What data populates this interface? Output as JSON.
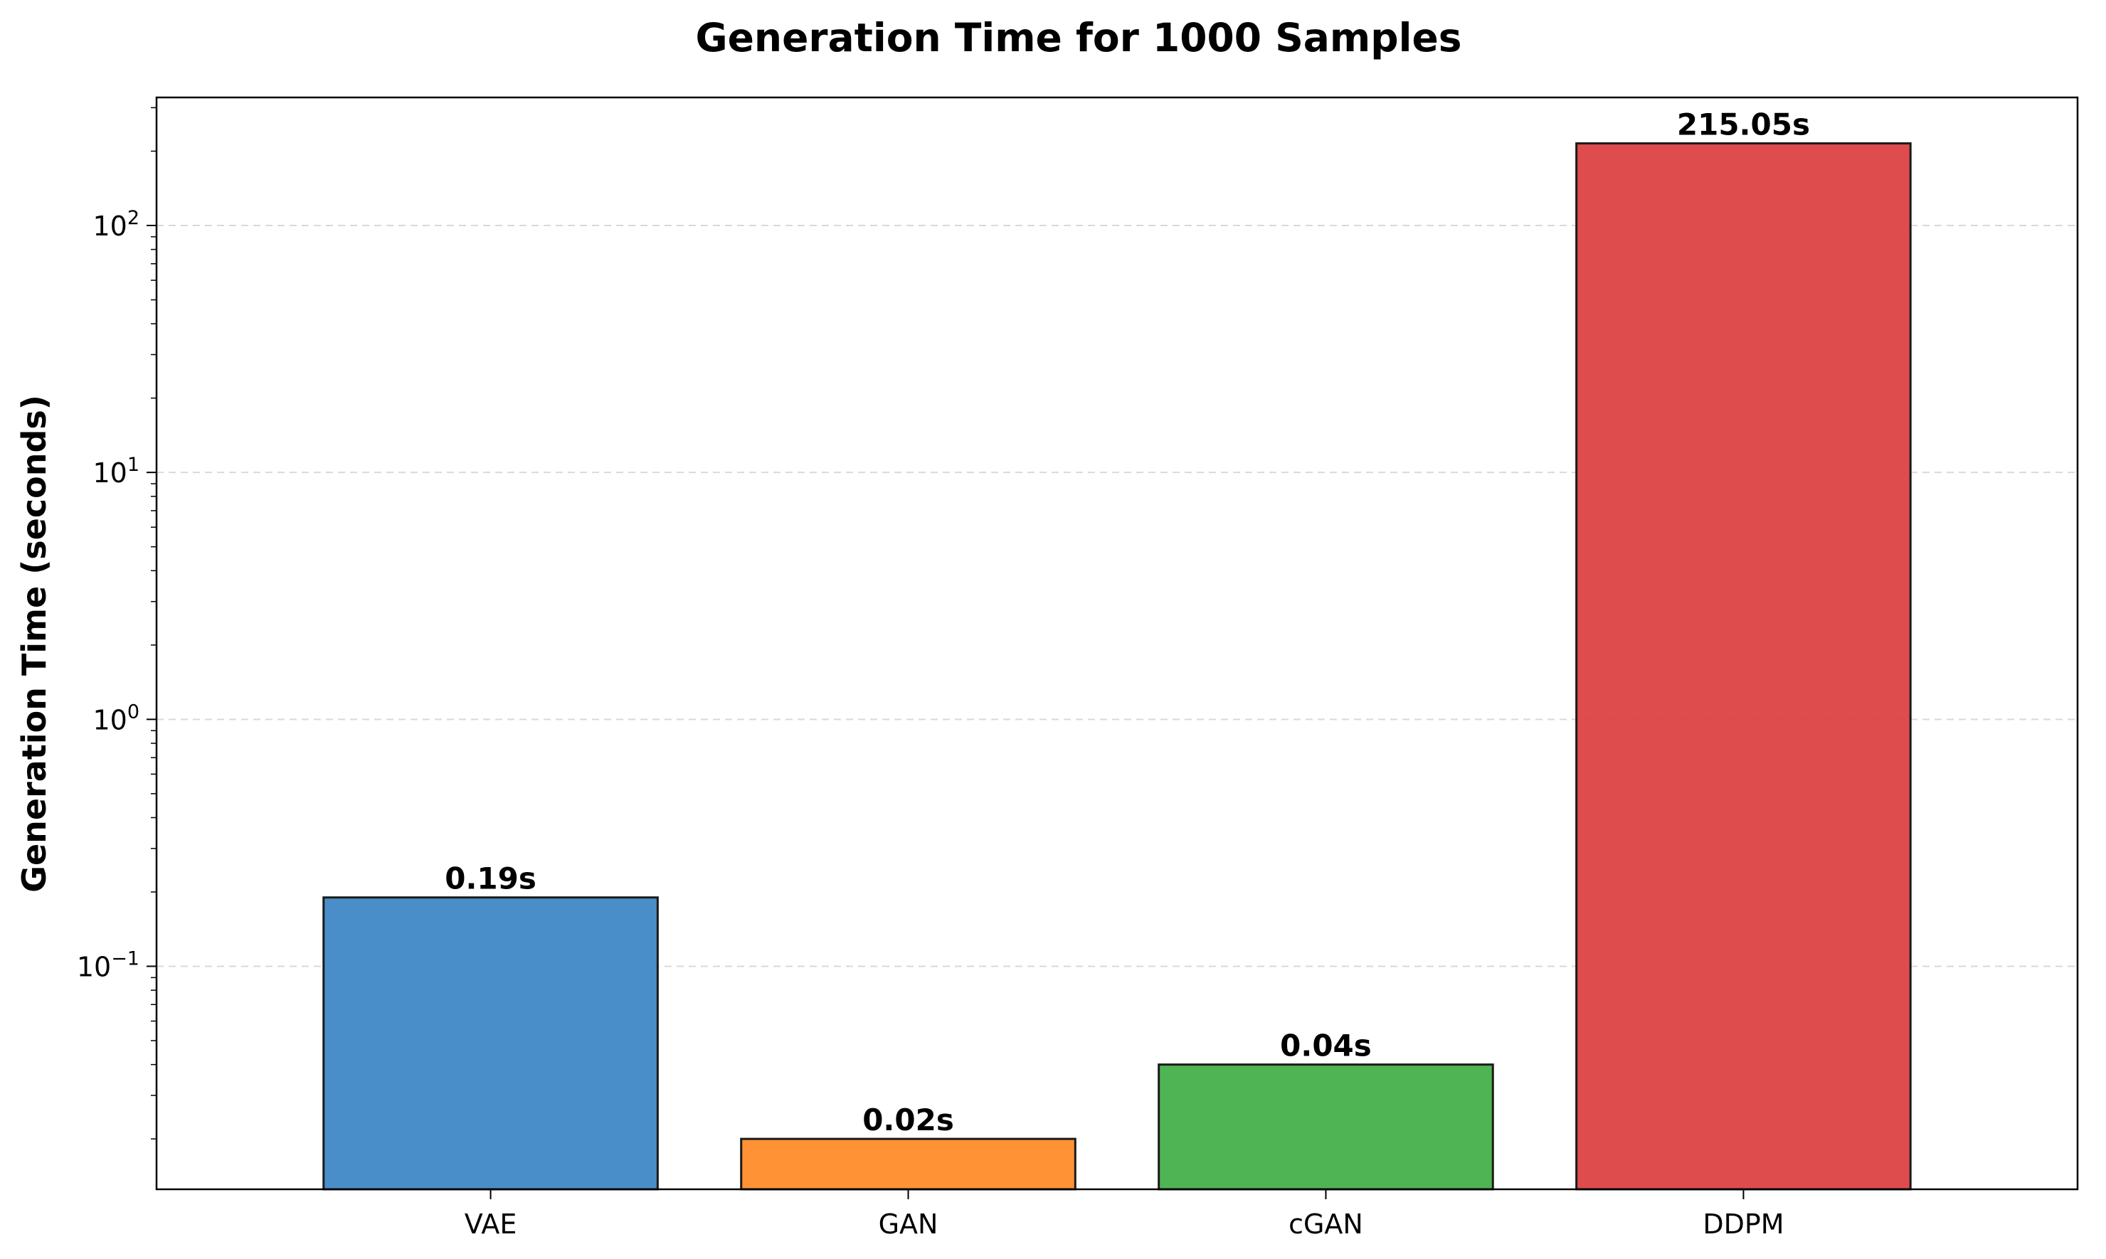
{
  "chart_data": {
    "type": "bar",
    "title": "Generation Time for 1000 Samples",
    "xlabel": "",
    "ylabel": "Generation Time (seconds)",
    "yscale": "log",
    "ylim": [
      0.0125,
      330
    ],
    "grid": "y-major-dashed",
    "categories": [
      "VAE",
      "GAN",
      "cGAN",
      "DDPM"
    ],
    "values": [
      0.19,
      0.02,
      0.04,
      215.05
    ],
    "value_labels": [
      "0.19s",
      "0.02s",
      "0.04s",
      "215.05s"
    ],
    "colors": [
      "#3f88c5",
      "#ff8c2a",
      "#46b04a",
      "#dc4245"
    ],
    "y_ticks": [
      {
        "value": 0.1,
        "base": "10",
        "exp": "−1"
      },
      {
        "value": 1,
        "base": "10",
        "exp": "0"
      },
      {
        "value": 10,
        "base": "10",
        "exp": "1"
      },
      {
        "value": 100,
        "base": "10",
        "exp": "2"
      }
    ]
  }
}
